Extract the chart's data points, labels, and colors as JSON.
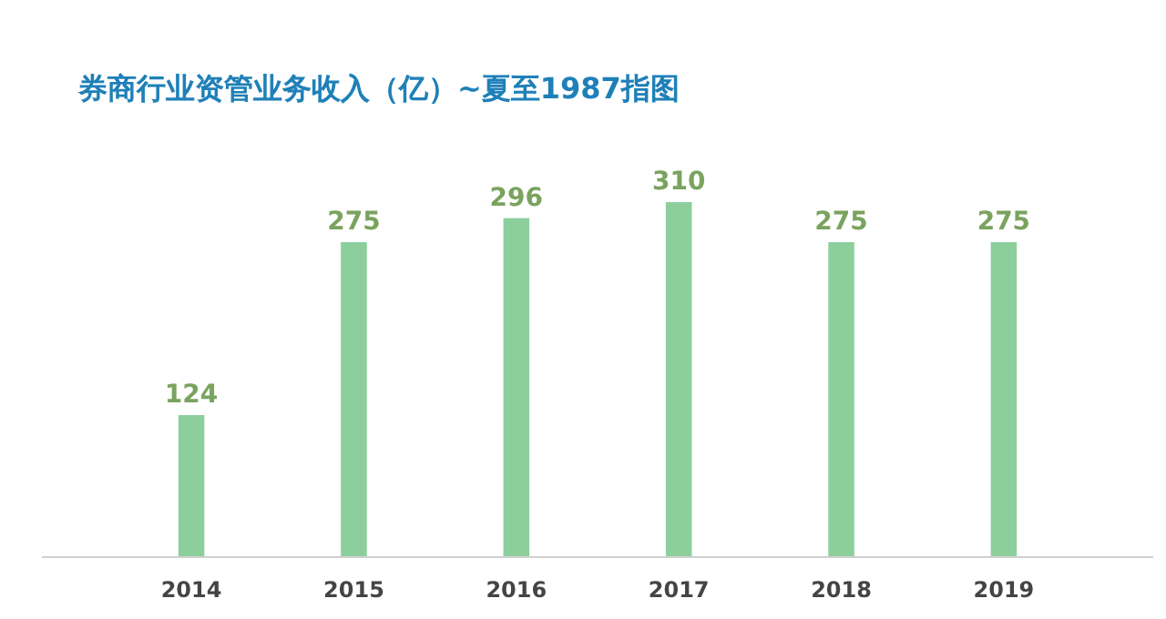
{
  "chart_data": {
    "type": "bar",
    "title": "券商行业资管业务收入（亿）~夏至1987指图",
    "categories": [
      "2014",
      "2015",
      "2016",
      "2017",
      "2018",
      "2019"
    ],
    "values": [
      124,
      275,
      296,
      310,
      275,
      275
    ],
    "color": "#8ccf9c",
    "data_labels": true
  }
}
